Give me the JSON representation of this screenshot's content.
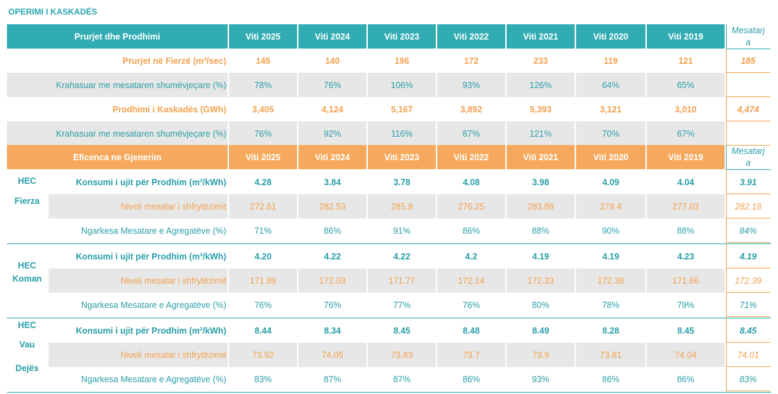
{
  "title": "OPERIMI I KASKADËS",
  "years": [
    "Viti 2025",
    "Viti 2024",
    "Viti 2023",
    "Viti 2022",
    "Viti 2021",
    "Viti 2020",
    "Viti 2019"
  ],
  "avg_header": [
    "Mesatarj",
    "a"
  ],
  "section1": {
    "header": "Prurjet dhe Prodhimi",
    "rows": [
      {
        "label": "Prurjet në Fierzë (m³/sec)",
        "values": [
          "145",
          "140",
          "196",
          "172",
          "233",
          "119",
          "121"
        ],
        "avg": "185"
      },
      {
        "label": "Krahasuar me mesataren shumëvjeçare (%)",
        "values": [
          "78%",
          "76%",
          "106%",
          "93%",
          "126%",
          "64%",
          "65%"
        ],
        "avg": ""
      },
      {
        "label": "Prodhimi i Kaskadës (GWh)",
        "values": [
          "3,405",
          "4,124",
          "5,167",
          "3,892",
          "5,393",
          "3,121",
          "3,010"
        ],
        "avg": "4,474"
      },
      {
        "label": "Krahasuar me mesataren shumëvjeçare (%)",
        "values": [
          "76%",
          "92%",
          "116%",
          "87%",
          "121%",
          "70%",
          "67%"
        ],
        "avg": ""
      }
    ]
  },
  "section2": {
    "header": "Eficenca ne Gjenerim",
    "plants": [
      {
        "name_lines": [
          "HEC",
          "Fierza"
        ],
        "rows": [
          {
            "label": "Konsumi i ujit për Prodhim (m³/kWh)",
            "values": [
              "4.28",
              "3.84",
              "3.78",
              "4.08",
              "3.98",
              "4.09",
              "4.04"
            ],
            "avg": "3.91"
          },
          {
            "label": "Niveli mesatar i shfrytëzimit",
            "values": [
              "272.61",
              "282.53",
              "285.9",
              "276.25",
              "283.88",
              "279.4",
              "277.03"
            ],
            "avg": "282.18"
          },
          {
            "label": "Ngarkesa Mesatare e Agregatëve (%)",
            "values": [
              "71%",
              "86%",
              "91%",
              "86%",
              "88%",
              "90%",
              "88%"
            ],
            "avg": "84%"
          }
        ]
      },
      {
        "name_lines": [
          "HEC",
          "Koman"
        ],
        "rows": [
          {
            "label": "Konsumi i ujit për Prodhim (m³/kWh)",
            "values": [
              "4.20",
              "4.22",
              "4.22",
              "4.2",
              "4.19",
              "4.19",
              "4.23"
            ],
            "avg": "4.19"
          },
          {
            "label": "Niveli mesatar i shfrytëzimit",
            "values": [
              "171.89",
              "172.03",
              "171.77",
              "172.14",
              "172.33",
              "172.38",
              "171.66"
            ],
            "avg": "172.39"
          },
          {
            "label": "Ngarkesa Mesatare e Agregatëve (%)",
            "values": [
              "76%",
              "76%",
              "77%",
              "76%",
              "80%",
              "78%",
              "79%"
            ],
            "avg": "71%"
          }
        ]
      },
      {
        "name_lines": [
          "HEC",
          "Vau",
          "Dejës"
        ],
        "rows": [
          {
            "label": "Konsumi i ujit për Prodhim (m³/kWh)",
            "values": [
              "8.44",
              "8.34",
              "8.45",
              "8.48",
              "8.49",
              "8.28",
              "8.45"
            ],
            "avg": "8.45"
          },
          {
            "label": "Niveli mesatar i shfrytëzimit",
            "values": [
              "73.92",
              "74.05",
              "73.83",
              "73.7",
              "73.9",
              "73.81",
              "74.04"
            ],
            "avg": "74.01"
          },
          {
            "label": "Ngarkesa Mesatare e Agregatëve (%)",
            "values": [
              "83%",
              "87%",
              "87%",
              "86%",
              "93%",
              "86%",
              "86%"
            ],
            "avg": "83%"
          }
        ]
      }
    ]
  }
}
